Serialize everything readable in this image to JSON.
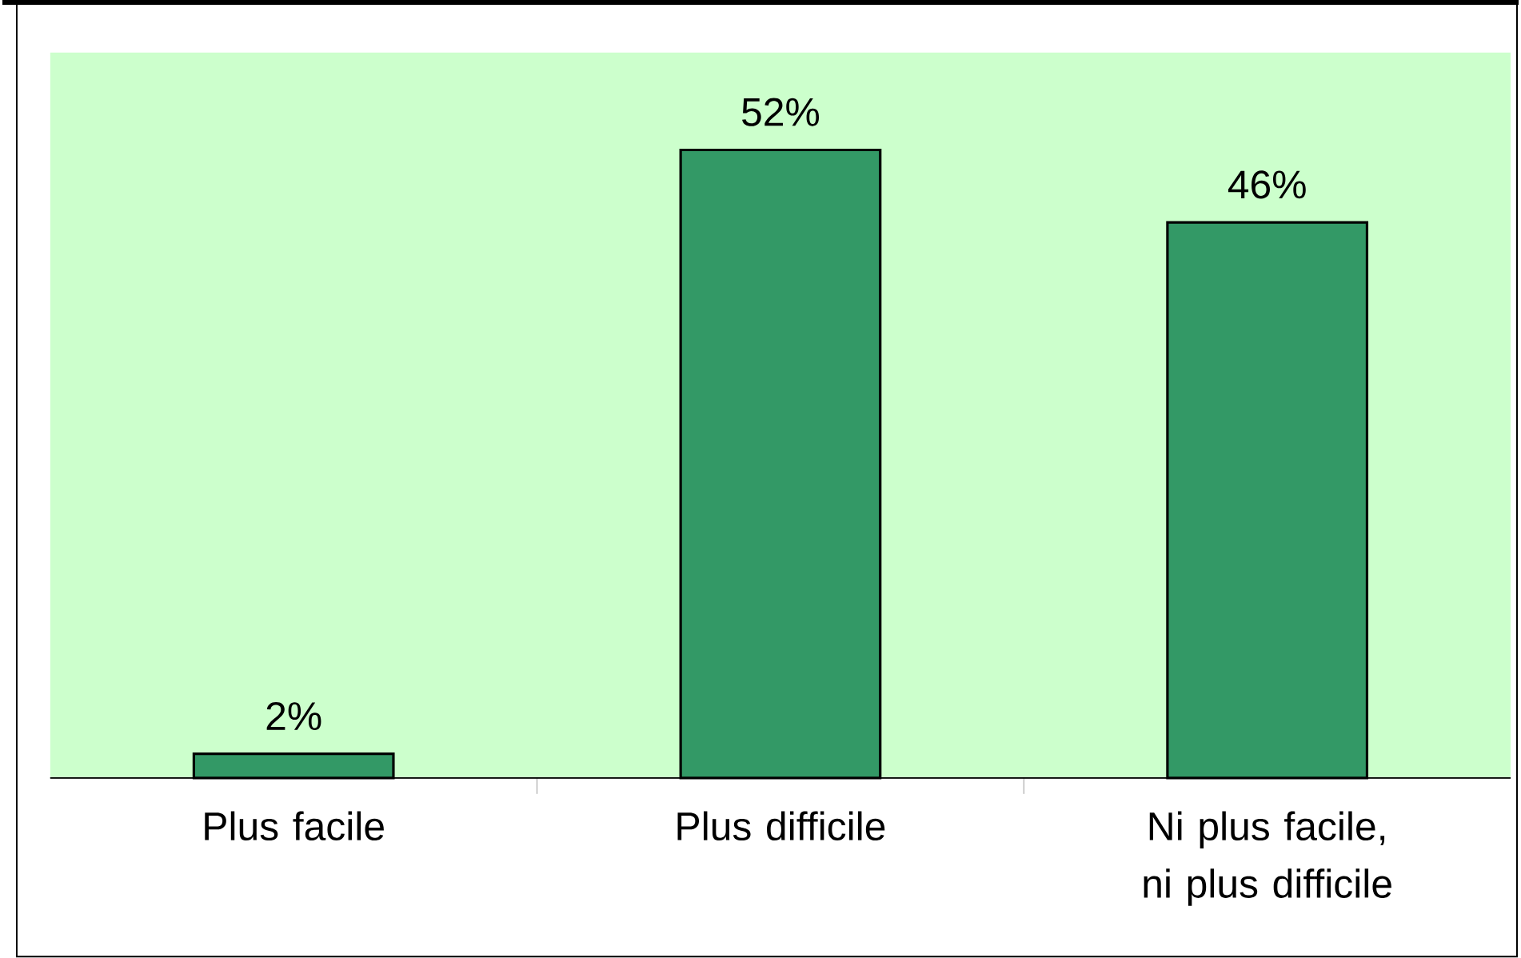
{
  "chart_data": {
    "type": "bar",
    "categories": [
      "Plus facile",
      "Plus difficile",
      "Ni plus facile, ni plus difficile"
    ],
    "values": [
      2,
      52,
      46
    ],
    "value_labels": [
      "2%",
      "52%",
      "46%"
    ],
    "color": "#339966"
  }
}
